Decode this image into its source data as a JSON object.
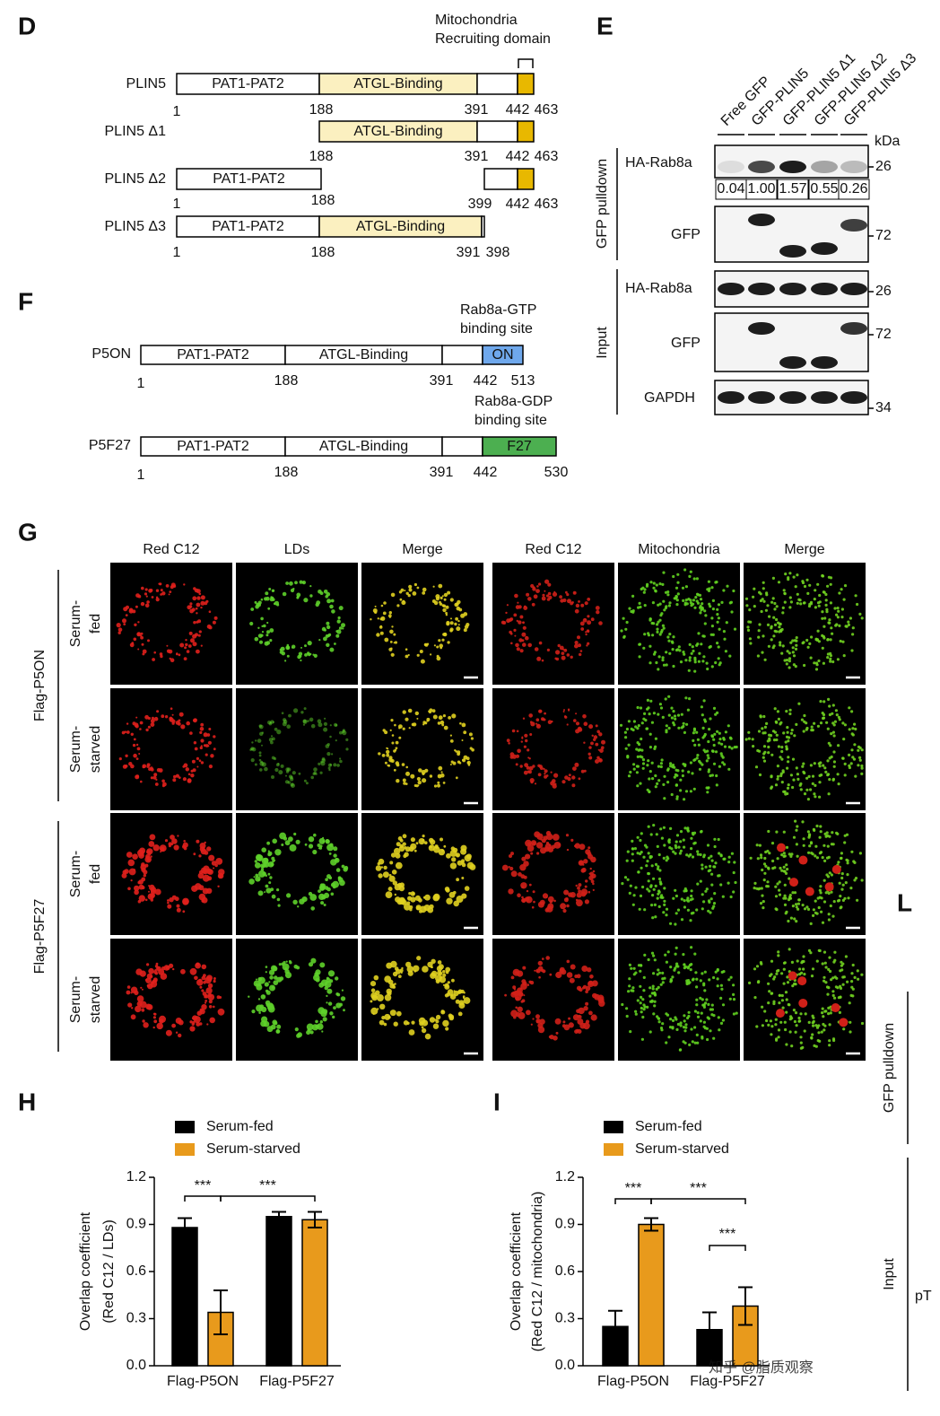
{
  "panels": {
    "D": {
      "label": "D",
      "domain_note": [
        "Mitochondria",
        "Recruiting domain"
      ],
      "constructs": [
        {
          "name": "PLIN5",
          "domains": [
            "PAT1-PAT2",
            "ATGL-Binding"
          ],
          "positions": [
            1,
            188,
            391,
            442,
            463
          ]
        },
        {
          "name": "PLIN5 Δ1",
          "domains": [
            "ATGL-Binding"
          ],
          "positions": [
            188,
            391,
            442,
            463
          ]
        },
        {
          "name": "PLIN5 Δ2",
          "domains": [
            "PAT1-PAT2"
          ],
          "positions": [
            1,
            188,
            399,
            442,
            463
          ]
        },
        {
          "name": "PLIN5 Δ3",
          "domains": [
            "PAT1-PAT2",
            "ATGL-Binding"
          ],
          "positions": [
            1,
            188,
            391,
            398
          ]
        }
      ]
    },
    "E": {
      "label": "E",
      "samples": [
        "Free GFP",
        "GFP-PLIN5",
        "GFP-PLIN5 Δ1",
        "GFP-PLIN5 Δ2",
        "GFP-PLIN5 Δ3"
      ],
      "unit": "kDa",
      "groups": [
        "GFP pulldown",
        "Input"
      ],
      "blots": [
        {
          "name": "HA-Rab8a",
          "kda": 26
        },
        {
          "name": "GFP",
          "kda": 72
        },
        {
          "name": "HA-Rab8a",
          "kda": 26
        },
        {
          "name": "GFP",
          "kda": 72
        },
        {
          "name": "GAPDH",
          "kda": 34
        }
      ],
      "quantification": [
        "0.04",
        "1.00",
        "1.57",
        "0.55",
        "0.26"
      ]
    },
    "F": {
      "label": "F",
      "constructs": [
        {
          "name": "P5ON",
          "domains": [
            "PAT1-PAT2",
            "ATGL-Binding",
            "ON"
          ],
          "positions": [
            1,
            188,
            391,
            442,
            513
          ],
          "note": [
            "Rab8a-GTP",
            "binding site"
          ]
        },
        {
          "name": "P5F27",
          "domains": [
            "PAT1-PAT2",
            "ATGL-Binding",
            "F27"
          ],
          "positions": [
            1,
            188,
            391,
            442,
            530
          ],
          "note": [
            "Rab8a-GDP",
            "binding site"
          ]
        }
      ]
    },
    "G": {
      "label": "G",
      "columns": [
        "Red C12",
        "LDs",
        "Merge",
        "Red C12",
        "Mitochondria",
        "Merge"
      ],
      "groups": [
        {
          "name": "Flag-P5ON",
          "rows": [
            [
              "Serum-",
              "fed"
            ],
            [
              "Serum-",
              "starved"
            ]
          ]
        },
        {
          "name": "Flag-P5F27",
          "rows": [
            [
              "Serum-",
              "fed"
            ],
            [
              "Serum-",
              "starved"
            ]
          ]
        }
      ]
    },
    "L": {
      "label": "L",
      "groups": [
        "GFP pulldown",
        "Input"
      ],
      "fragment": "pT"
    },
    "watermark": "知乎 @脂质观察"
  },
  "chart_data": [
    {
      "type": "bar",
      "panel_label": "H",
      "ylabel": [
        "Overlap coefficient",
        "(Red C12 / LDs)"
      ],
      "categories": [
        "Flag-P5ON",
        "Flag-P5F27"
      ],
      "series": [
        {
          "name": "Serum-fed",
          "color": "#000000",
          "values": [
            0.88,
            0.95
          ],
          "errors": [
            0.06,
            0.03
          ]
        },
        {
          "name": "Serum-starved",
          "color": "#e89a1c",
          "values": [
            0.34,
            0.93
          ],
          "errors": [
            0.14,
            0.05
          ]
        }
      ],
      "ylim": [
        0,
        1.2
      ],
      "yticks": [
        {
          "value": 0,
          "label": "0.0"
        },
        0.3,
        0.6,
        0.9,
        1.2
      ],
      "annotations": [
        "***",
        "***"
      ]
    },
    {
      "type": "bar",
      "panel_label": "I",
      "ylabel": [
        "Overlap coefficient",
        "(Red C12 / mitochondria)"
      ],
      "categories": [
        "Flag-P5ON",
        "Flag-P5F27"
      ],
      "series": [
        {
          "name": "Serum-fed",
          "color": "#000000",
          "values": [
            0.25,
            0.23
          ],
          "errors": [
            0.1,
            0.11
          ]
        },
        {
          "name": "Serum-starved",
          "color": "#e89a1c",
          "values": [
            0.9,
            0.38
          ],
          "errors": [
            0.04,
            0.12
          ]
        }
      ],
      "ylim": [
        0,
        1.2
      ],
      "yticks": [
        {
          "value": 0,
          "label": "0.0"
        },
        0.3,
        0.6,
        0.9,
        1.2
      ],
      "annotations": [
        "***",
        "***",
        "***"
      ]
    }
  ]
}
